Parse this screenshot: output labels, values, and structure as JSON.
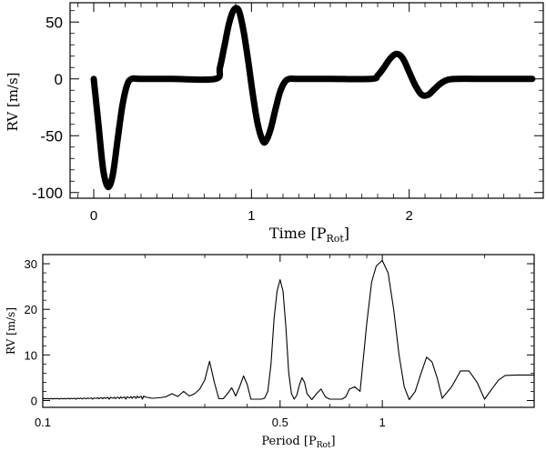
{
  "chart_data": [
    {
      "type": "line",
      "xlabel": "Time",
      "xlabel_sub": "Rot",
      "ylabel": "RV [m/s]",
      "xlim": [
        -0.15,
        2.85
      ],
      "ylim": [
        -105,
        67
      ],
      "xticks": [
        0,
        1,
        2
      ],
      "xtick_labels": [
        "0",
        "1",
        "2"
      ],
      "yticks": [
        50,
        0,
        -50,
        -100
      ],
      "ytick_labels": [
        "50",
        "0",
        "-50",
        "-100"
      ],
      "series": [
        {
          "x": [
            0.0,
            0.03,
            0.06,
            0.09,
            0.12,
            0.15,
            0.18,
            0.21,
            0.24,
            0.3,
            0.5,
            0.77,
            0.8,
            0.83,
            0.86,
            0.89,
            0.92,
            0.95,
            0.98,
            1.01,
            1.04,
            1.07,
            1.09,
            1.12,
            1.15,
            1.18,
            1.21,
            1.24,
            1.3,
            1.5,
            1.76,
            1.8,
            1.84,
            1.88,
            1.92,
            1.96,
            2.0,
            2.04,
            2.08,
            2.12,
            2.16,
            2.2,
            2.24,
            2.3,
            2.5,
            2.78
          ],
          "values": [
            0,
            -40,
            -80,
            -95,
            -85,
            -55,
            -25,
            -6,
            0,
            0,
            0,
            0,
            10,
            30,
            50,
            61,
            60,
            42,
            15,
            -15,
            -40,
            -54,
            -55,
            -45,
            -28,
            -12,
            -3,
            0,
            0,
            0,
            0,
            3,
            10,
            18,
            22,
            18,
            6,
            -6,
            -14,
            -14,
            -9,
            -4,
            -1,
            0,
            0,
            0
          ]
        }
      ]
    },
    {
      "type": "line",
      "xlabel": "Period",
      "xlabel_sub": "Rot",
      "ylabel": "RV [m/s]",
      "xscale": "log",
      "xlim": [
        0.1,
        2.8
      ],
      "ylim": [
        -1.5,
        32
      ],
      "xticks": [
        0.1,
        0.5,
        1
      ],
      "xtick_labels": [
        "0.1",
        "0.5",
        "1"
      ],
      "yticks": [
        0,
        10,
        20,
        30
      ],
      "ytick_labels": [
        "0",
        "10",
        "20",
        "30"
      ],
      "series": [
        {
          "x": [
            0.1,
            0.2,
            0.21,
            0.22,
            0.23,
            0.24,
            0.25,
            0.26,
            0.27,
            0.28,
            0.29,
            0.3,
            0.31,
            0.32,
            0.33,
            0.34,
            0.35,
            0.36,
            0.37,
            0.38,
            0.39,
            0.4,
            0.41,
            0.42,
            0.43,
            0.44,
            0.45,
            0.46,
            0.47,
            0.48,
            0.49,
            0.5,
            0.51,
            0.52,
            0.53,
            0.54,
            0.55,
            0.56,
            0.57,
            0.58,
            0.59,
            0.6,
            0.62,
            0.64,
            0.66,
            0.68,
            0.7,
            0.72,
            0.74,
            0.76,
            0.78,
            0.8,
            0.83,
            0.86,
            0.9,
            0.93,
            0.96,
            1.0,
            1.04,
            1.08,
            1.12,
            1.16,
            1.2,
            1.25,
            1.3,
            1.35,
            1.4,
            1.45,
            1.5,
            1.6,
            1.7,
            1.8,
            1.9,
            2.0,
            2.1,
            2.2,
            2.3,
            2.5,
            2.8
          ],
          "values": [
            0.3,
            0.7,
            0.5,
            0.6,
            0.8,
            1.5,
            0.9,
            2.0,
            1.0,
            1.5,
            2.5,
            4.5,
            8.6,
            4.0,
            0.4,
            0.4,
            1.5,
            2.8,
            1.0,
            3.0,
            5.4,
            3.5,
            0.3,
            0.3,
            0.3,
            0.3,
            0.5,
            2.0,
            8.0,
            18.0,
            24.0,
            26.5,
            24.0,
            16.0,
            6.0,
            1.5,
            0.3,
            1.2,
            3.5,
            5.0,
            4.0,
            1.5,
            0.2,
            1.5,
            2.5,
            0.8,
            0.3,
            0.3,
            0.3,
            0.3,
            0.8,
            2.5,
            3.0,
            2.0,
            17.0,
            26.0,
            29.5,
            30.7,
            28.0,
            20.0,
            10.0,
            3.0,
            0.2,
            2.0,
            6.0,
            9.5,
            8.5,
            5.0,
            0.5,
            3.0,
            6.5,
            6.5,
            4.0,
            0.3,
            2.5,
            4.5,
            5.5,
            5.6,
            5.6
          ]
        }
      ]
    }
  ]
}
